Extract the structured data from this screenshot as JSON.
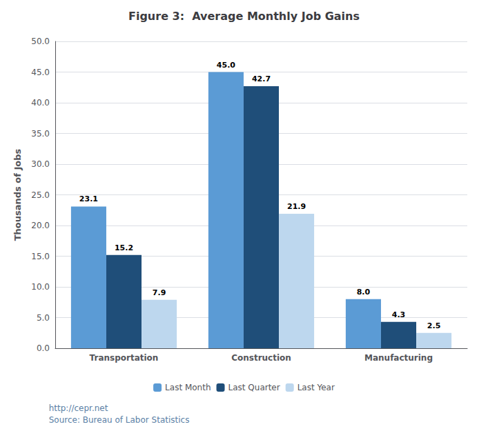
{
  "chart_data": {
    "type": "bar",
    "title": "Figure 3:  Average Monthly Job Gains",
    "ylabel": "Thousands of Jobs",
    "categories": [
      "Transportation",
      "Construction",
      "Manufacturing"
    ],
    "series": [
      {
        "name": "Last Month",
        "color": "#5B9BD5",
        "values": [
          23.1,
          45.0,
          8.0
        ],
        "value_labels": [
          "23.1",
          "45.0",
          "8.0"
        ]
      },
      {
        "name": "Last Quarter",
        "color": "#1F4E79",
        "values": [
          15.2,
          42.7,
          4.3
        ],
        "value_labels": [
          "15.2",
          "42.7",
          "4.3"
        ]
      },
      {
        "name": "Last Year",
        "color": "#BDD7EE",
        "values": [
          7.9,
          21.9,
          2.5
        ],
        "value_labels": [
          "7.9",
          "21.9",
          "2.5"
        ]
      }
    ],
    "ylim": [
      0,
      50
    ],
    "yticks": [
      {
        "value": 0,
        "label": "0.0"
      },
      {
        "value": 5,
        "label": "5.0"
      },
      {
        "value": 10,
        "label": "10.0"
      },
      {
        "value": 15,
        "label": "15.0"
      },
      {
        "value": 20,
        "label": "20.0"
      },
      {
        "value": 25,
        "label": "25.0"
      },
      {
        "value": 30,
        "label": "30.0"
      },
      {
        "value": 35,
        "label": "35.0"
      },
      {
        "value": 40,
        "label": "40.0"
      },
      {
        "value": 45,
        "label": "45.0"
      },
      {
        "value": 50,
        "label": "50.0"
      }
    ],
    "grid": true,
    "legend": "bottom",
    "data_labels": true,
    "annotations": [
      "http://cepr.net",
      "Source: Bureau of Labor Statistics"
    ]
  }
}
